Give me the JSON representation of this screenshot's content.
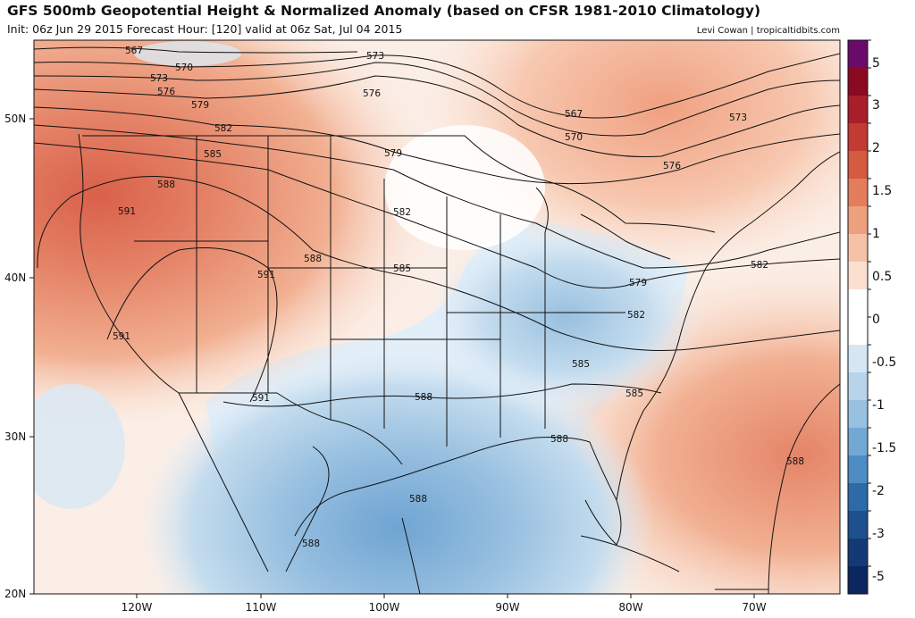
{
  "header": {
    "title": "GFS 500mb Geopotential Height & Normalized Anomaly (based on CFSR 1981-2010 Climatology)",
    "subtitle": "Init: 06z Jun 29 2015   Forecast Hour: [120]   valid at 06z Sat, Jul 04 2015",
    "credit": "Levi Cowan | tropicaltidbits.com"
  },
  "map": {
    "lat_ticks": [
      "50N",
      "40N",
      "30N",
      "20N"
    ],
    "lon_ticks": [
      "120W",
      "110W",
      "100W",
      "90W",
      "80W",
      "70W"
    ],
    "contour_labels": [
      "567",
      "570",
      "573",
      "576",
      "579",
      "582",
      "585",
      "588",
      "591",
      "573",
      "576",
      "567",
      "570",
      "573",
      "576",
      "579",
      "582",
      "585",
      "588",
      "591",
      "588",
      "591",
      "585",
      "582",
      "579",
      "582",
      "585",
      "588",
      "588",
      "588",
      "591",
      "588"
    ]
  },
  "colorbar": {
    "labels": [
      "5",
      "3",
      "2",
      "1.5",
      "1",
      "0.5",
      "0",
      "-0.5",
      "-1",
      "-1.5",
      "-2",
      "-3",
      "-5"
    ],
    "colors": [
      "#6a0a6a",
      "#8a0a22",
      "#a81e2a",
      "#c23a32",
      "#d45a40",
      "#e27e5c",
      "#eda07e",
      "#f5c2a6",
      "#fbe0d0",
      "#ffffff",
      "#ffffff",
      "#d6e6f3",
      "#b8d4ea",
      "#98c0e0",
      "#74a8d4",
      "#4e8cc4",
      "#2e6aa8",
      "#1e4f8e",
      "#143a76",
      "#0c2660"
    ]
  }
}
